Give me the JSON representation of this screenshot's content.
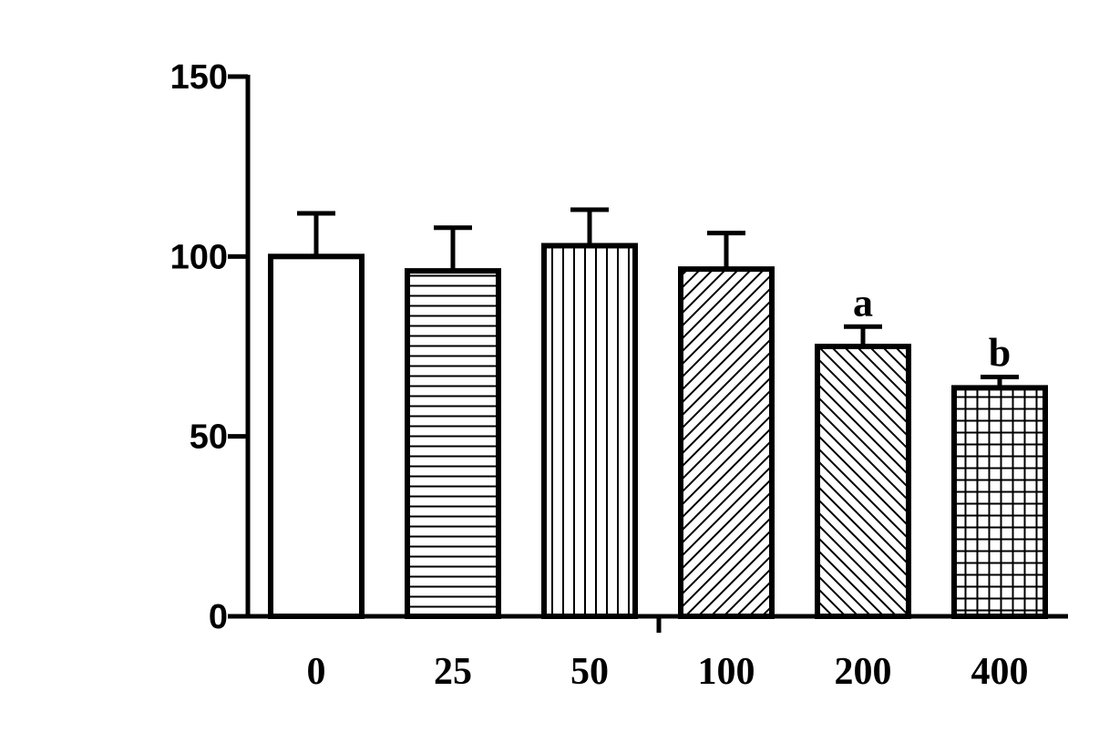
{
  "chart_data": {
    "type": "bar",
    "title": "",
    "xlabel": "",
    "ylabel": "",
    "ylim": [
      0,
      150
    ],
    "yticks": [
      0,
      50,
      100,
      150
    ],
    "categories": [
      "0",
      "25",
      "50",
      "100",
      "200",
      "400"
    ],
    "values": [
      100,
      96,
      103,
      96.5,
      75,
      63.5
    ],
    "errors": [
      12,
      12,
      10,
      10,
      5.5,
      3
    ],
    "patterns": [
      "none",
      "horizontal",
      "vertical",
      "diagonal-up",
      "diagonal-down",
      "grid"
    ],
    "annotations": [
      "",
      "",
      "",
      "",
      "a",
      "b"
    ],
    "grid": false,
    "legend": "none"
  }
}
